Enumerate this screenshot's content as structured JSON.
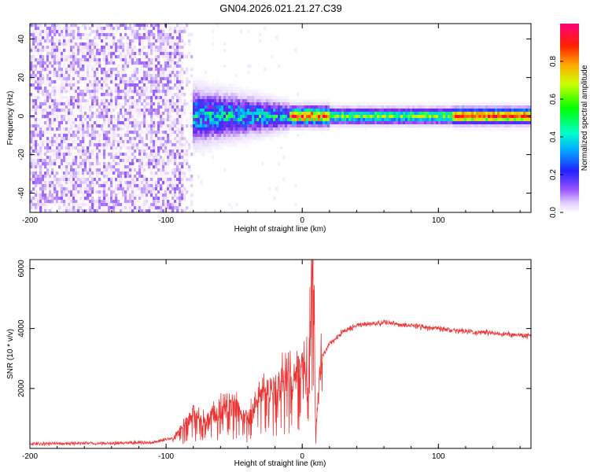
{
  "title": "GN04.2026.021.21.27.C39",
  "colors": {
    "snr_line": "#ee3333",
    "axis": "#000000",
    "background": "#ffffff",
    "colormap": [
      "#ffffff",
      "#e8d8ff",
      "#b080ff",
      "#7a2cf0",
      "#3333ff",
      "#00c8ff",
      "#00ff66",
      "#ccff00",
      "#ffaa00",
      "#ff2200",
      "#ff0066"
    ]
  },
  "chart_data": [
    {
      "type": "heatmap",
      "name": "spectrogram",
      "xlabel": "Height of straight line (km)",
      "ylabel": "Frequency (Hz)",
      "xlim": [
        -200,
        168
      ],
      "ylim": [
        -50,
        48
      ],
      "x_ticks": [
        -200,
        -100,
        0,
        100
      ],
      "y_ticks": [
        -40,
        -20,
        0,
        20,
        40
      ],
      "noise_region": {
        "x_from": -200,
        "x_to": -80
      },
      "ridge": {
        "x_from": -80,
        "x_to": 168,
        "center_frequency": 0
      },
      "colorbar": {
        "label": "Normalized spectral amplitude",
        "range": [
          0,
          1
        ],
        "ticks": [
          0.0,
          0.2,
          0.4,
          0.6,
          0.8
        ]
      }
    },
    {
      "type": "line",
      "name": "snr",
      "xlabel": "Height of straight line (km)",
      "ylabel": "SNR (10 * v/v)",
      "xlim": [
        -200,
        168
      ],
      "ylim": [
        0,
        6300
      ],
      "x_ticks": [
        -200,
        -100,
        0,
        100
      ],
      "y_ticks": [
        2000,
        4000,
        6000
      ],
      "series": [
        {
          "name": "SNR",
          "x": [
            -200,
            -150,
            -110,
            -95,
            -88,
            -80,
            -70,
            -60,
            -50,
            -40,
            -30,
            -20,
            -10,
            0,
            5,
            8,
            10,
            12,
            15,
            20,
            30,
            40,
            50,
            60,
            80,
            100,
            120,
            140,
            168
          ],
          "y": [
            150,
            170,
            200,
            350,
            700,
            1200,
            900,
            1400,
            1500,
            900,
            1800,
            2000,
            2400,
            2600,
            3000,
            6300,
            500,
            2000,
            3100,
            3500,
            3900,
            4100,
            4150,
            4200,
            4100,
            4000,
            3900,
            3850,
            3750
          ]
        }
      ]
    }
  ]
}
